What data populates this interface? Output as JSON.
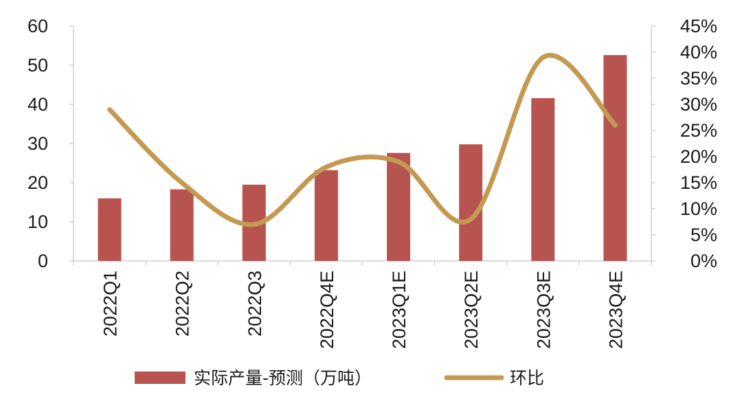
{
  "chart_data": {
    "type": "bar",
    "categories": [
      "2022Q1",
      "2022Q2",
      "2022Q3",
      "2022Q4E",
      "2023Q1E",
      "2023Q2E",
      "2023Q3E",
      "2023Q4E"
    ],
    "series": [
      {
        "name": "实际产量-预测（万吨）",
        "type": "bar",
        "axis": "left",
        "color": "#b85450",
        "values": [
          16,
          18.3,
          19.5,
          23.2,
          27.6,
          29.8,
          41.6,
          52.6
        ]
      },
      {
        "name": "环比",
        "type": "line",
        "smooth": true,
        "axis": "right",
        "color": "#c49a52",
        "values": [
          0.29,
          0.15,
          0.07,
          0.18,
          0.19,
          0.08,
          0.39,
          0.26
        ]
      }
    ],
    "y_left": {
      "min": 0,
      "max": 60,
      "ticks": [
        "0",
        "10",
        "20",
        "30",
        "40",
        "50",
        "60"
      ]
    },
    "y_right": {
      "min": 0,
      "max": 0.45,
      "ticks": [
        "0%",
        "5%",
        "10%",
        "15%",
        "20%",
        "25%",
        "30%",
        "35%",
        "40%",
        "45%"
      ]
    },
    "xlabel": "",
    "ylabel": "",
    "grid": false,
    "legend_position": "bottom"
  }
}
